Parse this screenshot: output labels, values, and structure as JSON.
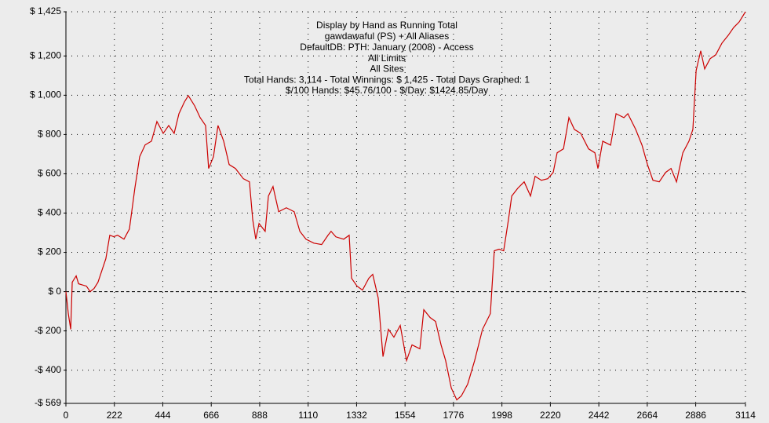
{
  "chart_data": {
    "type": "line",
    "title": "Display by Hand as Running Total",
    "subtitle": [
      "gawdawaful (PS) + All Aliases",
      "DefaultDB: PTH: January (2008) - Access",
      "All Limits",
      "All Sites",
      "Total Hands: 3,114 - Total Winnings: $ 1,425 - Total Days Graphed: 1",
      "$/100 Hands: $45.76/100 - $/Day: $1424.85/Day"
    ],
    "x": [
      0,
      11,
      22,
      29,
      47,
      58,
      94,
      111,
      129,
      147,
      165,
      183,
      201,
      219,
      237,
      266,
      291,
      316,
      338,
      363,
      392,
      417,
      446,
      471,
      496,
      518,
      543,
      561,
      590,
      615,
      640,
      654,
      676,
      697,
      723,
      748,
      777,
      813,
      841,
      856,
      870,
      885,
      913,
      928,
      949,
      975,
      1010,
      1046,
      1072,
      1100,
      1136,
      1172,
      1201,
      1215,
      1237,
      1273,
      1298,
      1309,
      1334,
      1359,
      1388,
      1406,
      1431,
      1453,
      1478,
      1503,
      1532,
      1561,
      1586,
      1622,
      1640,
      1669,
      1694,
      1719,
      1740,
      1766,
      1791,
      1812,
      1841,
      1873,
      1909,
      1945,
      1963,
      1985,
      2006,
      2028,
      2043,
      2071,
      2100,
      2129,
      2150,
      2179,
      2208,
      2233,
      2251,
      2280,
      2305,
      2330,
      2359,
      2395,
      2424,
      2438,
      2460,
      2496,
      2521,
      2557,
      2575,
      2611,
      2640,
      2665,
      2690,
      2719,
      2748,
      2773,
      2798,
      2827,
      2855,
      2873,
      2888,
      2909,
      2927,
      2952,
      2978,
      3006,
      3035,
      3060,
      3085,
      3114
    ],
    "series": [
      {
        "name": "Running Total",
        "color": "#cc0000",
        "values": [
          0,
          -112,
          -192,
          48,
          80,
          40,
          28,
          0,
          16,
          48,
          108,
          168,
          287,
          280,
          287,
          267,
          319,
          527,
          687,
          747,
          766,
          866,
          806,
          846,
          806,
          906,
          966,
          998,
          946,
          886,
          846,
          627,
          687,
          846,
          766,
          647,
          627,
          575,
          559,
          367,
          267,
          347,
          307,
          487,
          535,
          407,
          427,
          407,
          307,
          267,
          247,
          240,
          287,
          307,
          279,
          267,
          287,
          68,
          28,
          8,
          68,
          88,
          -32,
          -331,
          -192,
          -232,
          -172,
          -351,
          -271,
          -291,
          -92,
          -132,
          -152,
          -271,
          -351,
          -491,
          -551,
          -531,
          -471,
          -351,
          -192,
          -112,
          208,
          216,
          208,
          367,
          487,
          527,
          559,
          487,
          587,
          567,
          575,
          607,
          707,
          727,
          886,
          826,
          806,
          727,
          707,
          627,
          766,
          746,
          906,
          886,
          906,
          826,
          746,
          647,
          567,
          559,
          607,
          627,
          559,
          707,
          766,
          826,
          1126,
          1226,
          1134,
          1186,
          1206,
          1265,
          1305,
          1345,
          1373,
          1425
        ]
      }
    ],
    "xlim": [
      0,
      3114
    ],
    "xticks": [
      0,
      222,
      444,
      666,
      888,
      1110,
      1332,
      1554,
      1776,
      1998,
      2220,
      2442,
      2664,
      2886,
      3114
    ],
    "ylim": [
      -569,
      1425
    ],
    "yticks": [
      {
        "value": -569,
        "label": "-$ 569"
      },
      {
        "value": -400,
        "label": "-$ 400"
      },
      {
        "value": -200,
        "label": "-$ 200"
      },
      {
        "value": 0,
        "label": "$ 0"
      },
      {
        "value": 200,
        "label": "$ 200"
      },
      {
        "value": 400,
        "label": "$ 400"
      },
      {
        "value": 600,
        "label": "$ 600"
      },
      {
        "value": 800,
        "label": "$ 800"
      },
      {
        "value": 1000,
        "label": "$ 1,000"
      },
      {
        "value": 1200,
        "label": "$ 1,200"
      },
      {
        "value": 1425,
        "label": "$ 1,425"
      }
    ],
    "grid": true
  }
}
